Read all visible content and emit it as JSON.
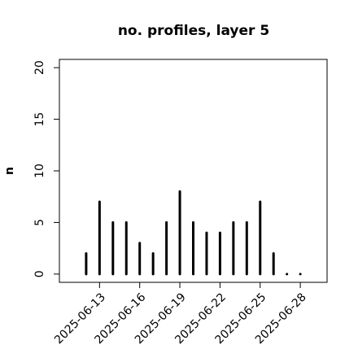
{
  "chart_data": {
    "type": "bar",
    "title": "no. profiles, layer 5",
    "ylabel": "n",
    "x": [
      "2025-06-12",
      "2025-06-13",
      "2025-06-14",
      "2025-06-15",
      "2025-06-16",
      "2025-06-17",
      "2025-06-18",
      "2025-06-19",
      "2025-06-20",
      "2025-06-21",
      "2025-06-22",
      "2025-06-23",
      "2025-06-24",
      "2025-06-25",
      "2025-06-26",
      "2025-06-27",
      "2025-06-28"
    ],
    "values": [
      2,
      7,
      5,
      5,
      3,
      2,
      5,
      8,
      5,
      4,
      4,
      5,
      5,
      7,
      2,
      0,
      0
    ],
    "color": "#000000",
    "xlim": [
      "2025-06-10",
      "2025-06-30"
    ],
    "xticks": [
      "2025-06-13",
      "2025-06-16",
      "2025-06-19",
      "2025-06-22",
      "2025-06-25",
      "2025-06-28"
    ],
    "xtick_colors": [
      "#000000",
      "#000000",
      "#228b22",
      "#000000",
      "#000000",
      "#000000"
    ],
    "ylim": [
      -0.8,
      20.8
    ],
    "yticks": [
      0,
      5,
      10,
      15,
      20
    ]
  }
}
